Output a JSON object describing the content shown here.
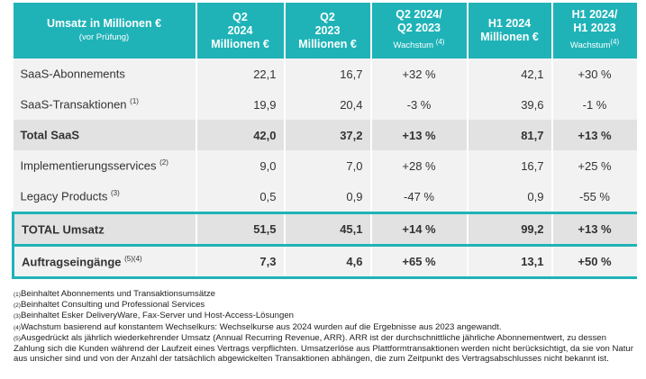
{
  "header": {
    "label": "Umsatz in Millionen €",
    "label_sub": "(vor Prüfung)",
    "cols": [
      {
        "l1": "Q2",
        "l2": "2024",
        "l3": "Millionen €"
      },
      {
        "l1": "Q2",
        "l2": "2023",
        "l3": "Millionen €"
      },
      {
        "l1": "Q2 2024/",
        "l2": "Q2 2023",
        "sub": "Wachstum",
        "sup": "(4)"
      },
      {
        "l1": "H1 2024",
        "l2": "Millionen €"
      },
      {
        "l1": "H1 2024/",
        "l2": "H1 2023",
        "sub": "Wachstum",
        "sup": "(4)"
      }
    ]
  },
  "rows": [
    {
      "label": "SaaS-Abonnements",
      "sup": "",
      "v": [
        "22,1",
        "16,7",
        "+32 %",
        "42,1",
        "+30 %"
      ]
    },
    {
      "label": "SaaS-Transaktionen",
      "sup": "(1)",
      "v": [
        "19,9",
        "20,4",
        "-3 %",
        "39,6",
        "-1 %"
      ]
    },
    {
      "label": "Total SaaS",
      "sup": "",
      "v": [
        "42,0",
        "37,2",
        "+13 %",
        "81,7",
        "+13 %"
      ]
    },
    {
      "label": "Implementierungsservices",
      "sup": "(2)",
      "v": [
        "9,0",
        "7,0",
        "+28 %",
        "16,7",
        "+25 %"
      ]
    },
    {
      "label": "Legacy Products",
      "sup": "(3)",
      "v": [
        "0,5",
        "0,9",
        "-47 %",
        "0,9",
        "-55 %"
      ]
    },
    {
      "label": "TOTAL Umsatz",
      "sup": "",
      "v": [
        "51,5",
        "45,1",
        "+14 %",
        "99,2",
        "+13 %"
      ]
    },
    {
      "label": "Auftragseingänge",
      "sup": "(5)(4)",
      "v": [
        "7,3",
        "4,6",
        "+65 %",
        "13,1",
        "+50 %"
      ]
    }
  ],
  "footnotes": [
    {
      "m": "(1)",
      "t": "Beinhaltet Abonnements und Transaktionsumsätze"
    },
    {
      "m": "(2)",
      "t": "Beinhaltet Consulting und Professional Services"
    },
    {
      "m": "(3)",
      "t": "Beinhaltet Esker DeliveryWare, Fax-Server und Host-Access-Lösungen"
    },
    {
      "m": "(4)",
      "t": "Wachstum basierend auf konstantem Wechselkurs: Wechselkurse aus 2024 wurden auf die Ergebnisse aus 2023 angewandt."
    },
    {
      "m": "(5)",
      "t": "Ausgedrückt als jährlich wiederkehrender Umsatz (Annual Recurring Revenue, ARR). ARR ist der durchschnittliche jährliche Abonnementwert, zu dessen Zahlung sich die Kunden während der Laufzeit eines Vertrags verpflichten. Umsatzerlöse aus Plattformtransaktionen werden nicht berücksichtigt, da sie von Natur aus unsicher sind und von der Anzahl der tatsächlich abgewickelten Transaktionen abhängen, die zum Zeitpunkt des Vertragsabschlusses nicht bekannt ist."
    }
  ],
  "colors": {
    "accent": "#1fb3b8",
    "row": "#f2f2f2",
    "total_row": "#e2e2e2"
  }
}
